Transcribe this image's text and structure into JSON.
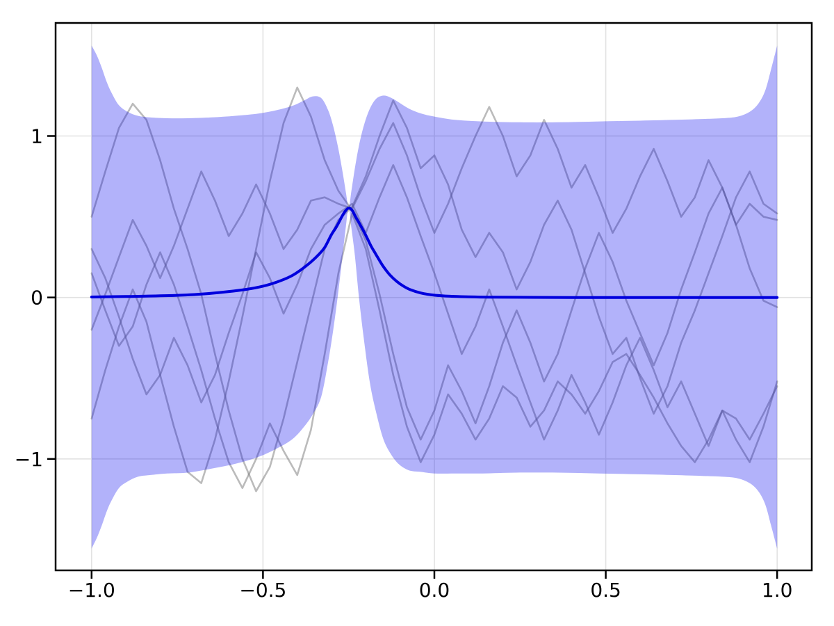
{
  "chart_data": {
    "type": "line",
    "title": "",
    "xlabel": "",
    "ylabel": "",
    "xlim": [
      -1.105,
      1.101
    ],
    "ylim": [
      -1.69,
      1.7
    ],
    "grid": true,
    "legend": null,
    "x_ticks": {
      "values": [
        -1.0,
        -0.5,
        0.0,
        0.5,
        1.0
      ],
      "labels": [
        "−1.0",
        "−0.5",
        "0.0",
        "0.5",
        "1.0"
      ]
    },
    "y_ticks": {
      "values": [
        1,
        0,
        -1
      ],
      "labels": [
        "1",
        "0",
        "−1"
      ]
    },
    "colors": {
      "band_fill": "#0000ee",
      "band_opacity": 0.3,
      "mean_line": "#0000dd",
      "sample_lines": "#787878",
      "sample_opacity": 0.5,
      "gridline": "#e2e2e2",
      "axes": "#000000",
      "background": "#ffffff"
    },
    "observation": {
      "x": -0.25,
      "y": 0.55
    },
    "mean_line": {
      "x": [
        -1.0,
        -0.9,
        -0.8,
        -0.7,
        -0.62,
        -0.55,
        -0.5,
        -0.46,
        -0.42,
        -0.39,
        -0.36,
        -0.34,
        -0.32,
        -0.3,
        -0.285,
        -0.27,
        -0.26,
        -0.25,
        -0.24,
        -0.23,
        -0.215,
        -0.2,
        -0.185,
        -0.17,
        -0.15,
        -0.13,
        -0.11,
        -0.09,
        -0.07,
        -0.04,
        0.0,
        0.05,
        0.1,
        0.16,
        0.24,
        0.4,
        0.6,
        0.8,
        1.0
      ],
      "y": [
        0.003,
        0.006,
        0.01,
        0.018,
        0.032,
        0.05,
        0.07,
        0.095,
        0.13,
        0.17,
        0.22,
        0.26,
        0.31,
        0.39,
        0.44,
        0.5,
        0.535,
        0.553,
        0.54,
        0.5,
        0.445,
        0.385,
        0.32,
        0.265,
        0.195,
        0.14,
        0.1,
        0.07,
        0.048,
        0.028,
        0.014,
        0.007,
        0.004,
        0.002,
        0.001,
        0.0,
        0.0,
        0.0,
        0.0
      ]
    },
    "confidence_band": {
      "x": [
        -1.0,
        -0.985,
        -0.97,
        -0.955,
        -0.94,
        -0.92,
        -0.895,
        -0.865,
        -0.83,
        -0.78,
        -0.72,
        -0.65,
        -0.58,
        -0.51,
        -0.45,
        -0.41,
        -0.38,
        -0.355,
        -0.33,
        -0.31,
        -0.295,
        -0.28,
        -0.268,
        -0.258,
        -0.25,
        -0.242,
        -0.232,
        -0.22,
        -0.205,
        -0.188,
        -0.17,
        -0.15,
        -0.13,
        -0.105,
        -0.075,
        -0.04,
        0.0,
        0.06,
        0.14,
        0.24,
        0.36,
        0.48,
        0.6,
        0.7,
        0.78,
        0.84,
        0.885,
        0.92,
        0.945,
        0.965,
        0.982,
        1.0
      ],
      "upper": [
        1.56,
        1.5,
        1.42,
        1.33,
        1.26,
        1.19,
        1.15,
        1.125,
        1.115,
        1.11,
        1.11,
        1.115,
        1.125,
        1.14,
        1.165,
        1.19,
        1.22,
        1.245,
        1.235,
        1.16,
        1.06,
        0.92,
        0.78,
        0.65,
        0.555,
        0.66,
        0.8,
        0.94,
        1.07,
        1.17,
        1.23,
        1.25,
        1.24,
        1.21,
        1.17,
        1.14,
        1.12,
        1.1,
        1.09,
        1.085,
        1.085,
        1.09,
        1.095,
        1.1,
        1.105,
        1.11,
        1.12,
        1.15,
        1.2,
        1.28,
        1.41,
        1.56
      ],
      "lower": [
        -1.555,
        -1.49,
        -1.41,
        -1.32,
        -1.25,
        -1.18,
        -1.14,
        -1.11,
        -1.1,
        -1.09,
        -1.085,
        -1.06,
        -1.03,
        -0.985,
        -0.925,
        -0.87,
        -0.8,
        -0.725,
        -0.615,
        -0.4,
        -0.2,
        0.04,
        0.26,
        0.44,
        0.555,
        0.43,
        0.26,
        0.0,
        -0.27,
        -0.53,
        -0.71,
        -0.87,
        -0.96,
        -1.03,
        -1.07,
        -1.08,
        -1.09,
        -1.09,
        -1.09,
        -1.085,
        -1.085,
        -1.09,
        -1.095,
        -1.1,
        -1.105,
        -1.11,
        -1.12,
        -1.15,
        -1.2,
        -1.28,
        -1.41,
        -1.555
      ]
    },
    "sample_paths": {
      "x": [
        -1,
        -0.96,
        -0.92,
        -0.88,
        -0.84,
        -0.8,
        -0.76,
        -0.72,
        -0.68,
        -0.64,
        -0.6,
        -0.56,
        -0.52,
        -0.48,
        -0.44,
        -0.4,
        -0.36,
        -0.32,
        -0.28,
        -0.24,
        -0.2,
        -0.16,
        -0.12,
        -0.08,
        -0.04,
        0,
        0.04,
        0.08,
        0.12,
        0.16,
        0.2,
        0.24,
        0.28,
        0.32,
        0.36,
        0.4,
        0.44,
        0.48,
        0.52,
        0.56,
        0.6,
        0.64,
        0.68,
        0.72,
        0.76,
        0.8,
        0.84,
        0.88,
        0.92,
        0.96,
        1
      ],
      "series": [
        [
          0.5,
          0.78,
          1.05,
          1.2,
          1.1,
          0.85,
          0.55,
          0.3,
          0.02,
          -0.35,
          -0.7,
          -1.0,
          -1.2,
          -1.05,
          -0.75,
          -0.4,
          -0.05,
          0.3,
          0.48,
          0.56,
          0.75,
          1.0,
          1.22,
          1.05,
          0.8,
          0.88,
          0.7,
          0.42,
          0.25,
          0.4,
          0.28,
          0.05,
          0.22,
          0.45,
          0.6,
          0.42,
          0.15,
          -0.12,
          -0.35,
          -0.25,
          -0.5,
          -0.72,
          -0.55,
          -0.28,
          -0.08,
          0.15,
          0.38,
          0.62,
          0.78,
          0.58,
          0.52
        ],
        [
          -0.75,
          -0.45,
          -0.18,
          0.05,
          -0.15,
          -0.48,
          -0.8,
          -1.08,
          -1.15,
          -0.88,
          -0.52,
          -0.12,
          0.3,
          0.72,
          1.08,
          1.3,
          1.12,
          0.85,
          0.66,
          0.54,
          0.35,
          0.02,
          -0.35,
          -0.68,
          -0.88,
          -0.7,
          -0.42,
          -0.58,
          -0.78,
          -0.55,
          -0.28,
          -0.08,
          -0.28,
          -0.52,
          -0.35,
          -0.08,
          0.18,
          0.4,
          0.22,
          -0.02,
          -0.22,
          -0.42,
          -0.22,
          0.05,
          0.28,
          0.52,
          0.68,
          0.45,
          0.18,
          -0.02,
          -0.06
        ],
        [
          0.15,
          -0.08,
          -0.3,
          -0.18,
          0.08,
          0.28,
          0.08,
          -0.18,
          -0.45,
          -0.75,
          -1.02,
          -1.18,
          -1.0,
          -0.78,
          -0.95,
          -1.1,
          -0.82,
          -0.35,
          0.15,
          0.52,
          0.3,
          -0.08,
          -0.48,
          -0.8,
          -1.02,
          -0.85,
          -0.6,
          -0.72,
          -0.88,
          -0.75,
          -0.55,
          -0.62,
          -0.8,
          -0.7,
          -0.52,
          -0.6,
          -0.72,
          -0.58,
          -0.4,
          -0.35,
          -0.48,
          -0.62,
          -0.78,
          -0.92,
          -1.02,
          -0.88,
          -0.7,
          -0.75,
          -0.88,
          -0.72,
          -0.55
        ],
        [
          -0.2,
          0.02,
          0.25,
          0.48,
          0.32,
          0.12,
          0.32,
          0.55,
          0.78,
          0.6,
          0.38,
          0.52,
          0.7,
          0.52,
          0.3,
          0.42,
          0.6,
          0.62,
          0.58,
          0.55,
          0.72,
          0.92,
          1.08,
          0.88,
          0.62,
          0.4,
          0.58,
          0.8,
          1.0,
          1.18,
          1.0,
          0.75,
          0.88,
          1.1,
          0.92,
          0.68,
          0.82,
          0.62,
          0.4,
          0.55,
          0.75,
          0.92,
          0.72,
          0.5,
          0.62,
          0.85,
          0.68,
          0.45,
          0.58,
          0.5,
          0.48
        ],
        [
          0.3,
          0.12,
          -0.12,
          -0.38,
          -0.6,
          -0.48,
          -0.25,
          -0.42,
          -0.65,
          -0.48,
          -0.22,
          0.02,
          0.28,
          0.12,
          -0.1,
          0.08,
          0.3,
          0.45,
          0.52,
          0.58,
          0.4,
          0.62,
          0.82,
          0.62,
          0.38,
          0.15,
          -0.1,
          -0.35,
          -0.18,
          0.05,
          -0.18,
          -0.42,
          -0.65,
          -0.88,
          -0.7,
          -0.48,
          -0.65,
          -0.85,
          -0.65,
          -0.42,
          -0.25,
          -0.45,
          -0.68,
          -0.52,
          -0.72,
          -0.92,
          -0.7,
          -0.88,
          -1.02,
          -0.8,
          -0.52
        ]
      ]
    }
  }
}
